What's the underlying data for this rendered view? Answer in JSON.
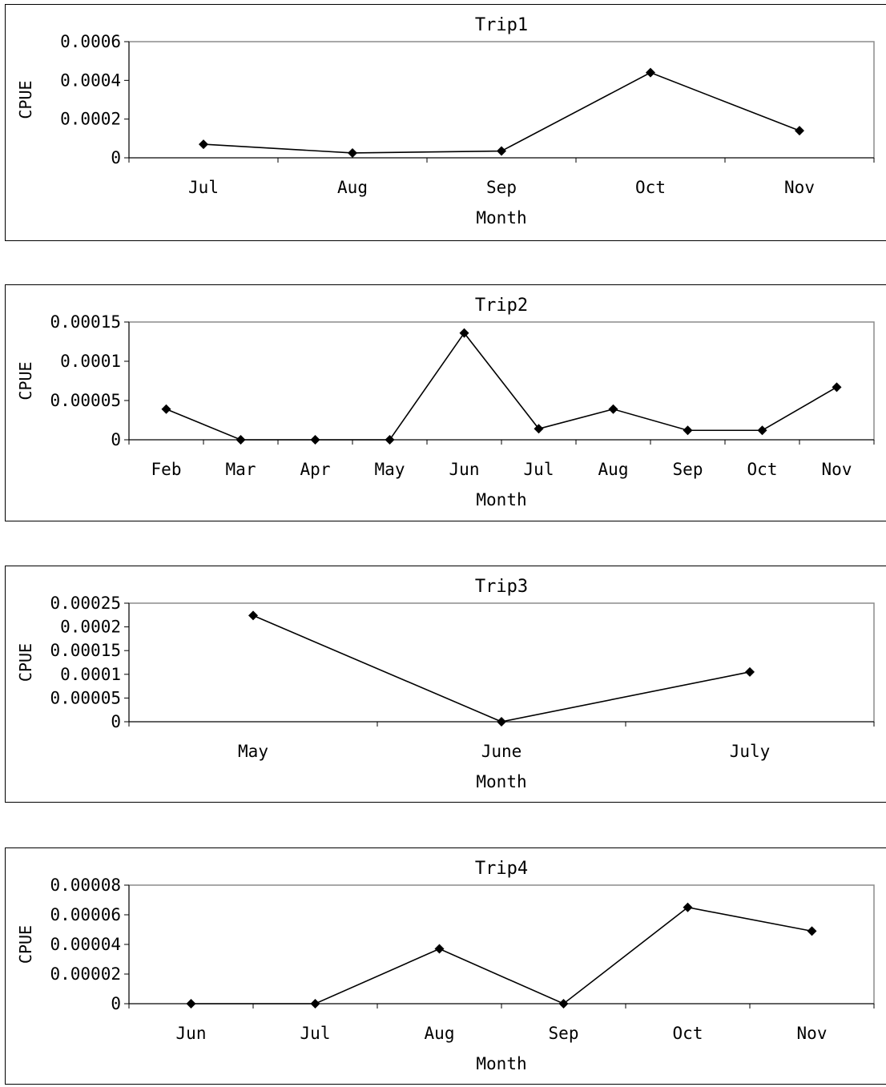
{
  "chart_data": [
    {
      "type": "line",
      "title": "Trip1",
      "xlabel": "Month",
      "ylabel": "CPUE",
      "categories": [
        "Jul",
        "Aug",
        "Sep",
        "Oct",
        "Nov"
      ],
      "series": [
        {
          "values": [
            7e-05,
            2.5e-05,
            3.5e-05,
            0.00044,
            0.00014
          ]
        }
      ],
      "yticks": [
        "0",
        "0.0002",
        "0.0004",
        "0.0006"
      ],
      "ylim": [
        0,
        0.0006
      ],
      "grid": false,
      "legend": "none",
      "marker": "diamond"
    },
    {
      "type": "line",
      "title": "Trip2",
      "xlabel": "Month",
      "ylabel": "CPUE",
      "categories": [
        "Feb",
        "Mar",
        "Apr",
        "May",
        "Jun",
        "Jul",
        "Aug",
        "Sep",
        "Oct",
        "Nov"
      ],
      "series": [
        {
          "values": [
            3.9e-05,
            0,
            0,
            0,
            0.000136,
            1.4e-05,
            3.9e-05,
            1.2e-05,
            1.2e-05,
            6.7e-05
          ]
        }
      ],
      "yticks": [
        "0",
        "0.00005",
        "0.0001",
        "0.00015"
      ],
      "ylim": [
        0,
        0.00015
      ],
      "grid": false,
      "legend": "none",
      "marker": "diamond"
    },
    {
      "type": "line",
      "title": "Trip3",
      "xlabel": "Month",
      "ylabel": "CPUE",
      "categories": [
        "May",
        "June",
        "July"
      ],
      "series": [
        {
          "values": [
            0.000224,
            0,
            0.000105
          ]
        }
      ],
      "yticks": [
        "0",
        "0.00005",
        "0.0001",
        "0.00015",
        "0.0002",
        "0.00025"
      ],
      "ylim": [
        0,
        0.00025
      ],
      "grid": false,
      "legend": "none",
      "marker": "diamond"
    },
    {
      "type": "line",
      "title": "Trip4",
      "xlabel": "Month",
      "ylabel": "CPUE",
      "categories": [
        "Jun",
        "Jul",
        "Aug",
        "Sep",
        "Oct",
        "Nov"
      ],
      "series": [
        {
          "values": [
            0,
            0,
            3.7e-05,
            0,
            6.5e-05,
            4.9e-05
          ]
        }
      ],
      "yticks": [
        "0",
        "0.00002",
        "0.00004",
        "0.00006",
        "0.00008"
      ],
      "ylim": [
        0,
        8e-05
      ],
      "grid": false,
      "legend": "none",
      "marker": "diamond"
    }
  ]
}
